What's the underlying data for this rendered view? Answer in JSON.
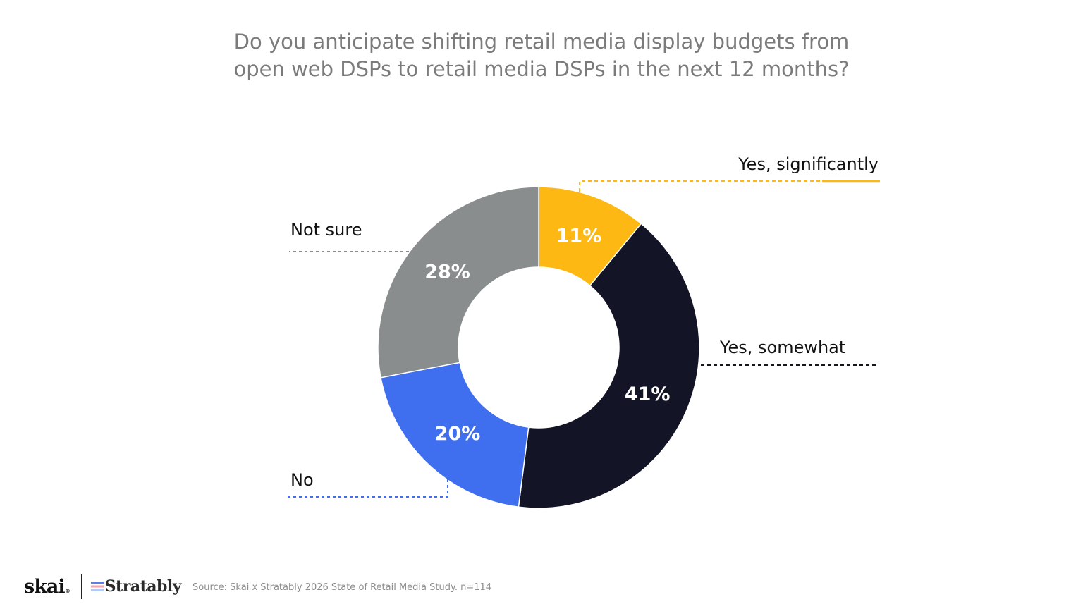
{
  "chart_data": {
    "type": "pie",
    "variant": "donut",
    "title": "Do you anticipate shifting retail media display budgets from open web DSPs to retail media DSPs in the next 12 months?",
    "title_lines": [
      "Do you anticipate shifting retail media display budgets from",
      "open web DSPs to retail media DSPs in the next 12 months?"
    ],
    "slices": [
      {
        "label": "Yes, significantly",
        "value": 11,
        "display": "11%",
        "color": "#FDB813",
        "label_color": "#FFFFFF"
      },
      {
        "label": "Yes, somewhat",
        "value": 41,
        "display": "41%",
        "color": "#131426",
        "label_color": "#FFFFFF"
      },
      {
        "label": "No",
        "value": 20,
        "display": "20%",
        "color": "#3F6FEE",
        "label_color": "#FFFFFF"
      },
      {
        "label": "Not sure",
        "value": 28,
        "display": "28%",
        "color": "#898D8D",
        "label_color": "#FFFFFF"
      }
    ],
    "start_angle_deg": 0,
    "direction": "clockwise",
    "legend": "callouts"
  },
  "footer": {
    "brand_primary": "skai",
    "brand_primary_mark": "®",
    "brand_secondary": "Stratably",
    "source": "Source: Skai x Stratably 2026 State of Retail Media Study. n=114"
  }
}
